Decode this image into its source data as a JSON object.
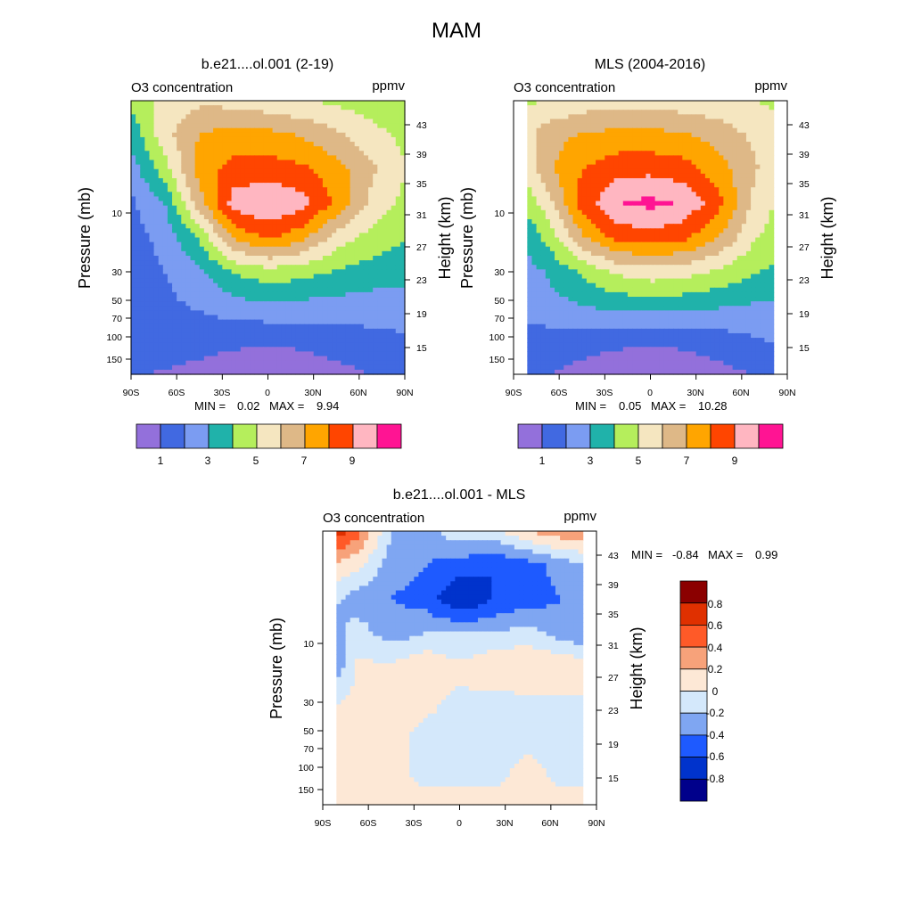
{
  "figure": {
    "title": "MAM"
  },
  "colors": {
    "o3_levels": [
      "#9370db",
      "#4169e1",
      "#7b9cf2",
      "#20b2aa",
      "#b5ee5c",
      "#f5e6c0",
      "#deb887",
      "#ffa500",
      "#ff4500",
      "#ffb6c1",
      "#ff1493"
    ],
    "diff_levels": [
      "#00008b",
      "#0033cc",
      "#1e5aff",
      "#7fa6f2",
      "#d4e8fb",
      "#fde8d6",
      "#f7a27a",
      "#ff5a28",
      "#e03000",
      "#8b0000"
    ]
  },
  "chart_data": [
    {
      "type": "heatmap",
      "title": "b.e21....ol.001 (2-19)",
      "left_label": "O3 concentration",
      "right_label": "ppmv",
      "ylabel": "Pressure (mb)",
      "ylabel_right": "Height (km)",
      "x_ticks": [
        "90S",
        "60S",
        "30S",
        "0",
        "30N",
        "60N",
        "90N"
      ],
      "y_ticks": [
        "10",
        "30",
        "50",
        "70",
        "100",
        "150"
      ],
      "y2_ticks": [
        "43",
        "39",
        "35",
        "31",
        "27",
        "23",
        "19",
        "15"
      ],
      "min_label": "MIN =",
      "min_value": "0.02",
      "max_label": "MAX =",
      "max_value": "9.94",
      "min": 0.02,
      "max": 9.94,
      "levels": [
        1,
        2,
        3,
        4,
        5,
        6,
        7,
        8,
        9,
        10
      ],
      "colorbar_labels": [
        "1",
        "3",
        "5",
        "7",
        "9"
      ],
      "z_grid": [
        [
          4.2,
          5.3,
          5.8,
          5.6,
          5.3,
          5.0,
          4.8,
          4.4,
          4.1
        ],
        [
          3.3,
          5.7,
          7.0,
          7.5,
          7.3,
          6.9,
          6.2,
          5.4,
          4.7
        ],
        [
          2.5,
          4.6,
          7.5,
          8.3,
          8.5,
          8.2,
          7.4,
          6.2,
          5.1
        ],
        [
          1.8,
          3.1,
          6.6,
          9.5,
          10.0,
          9.4,
          7.8,
          5.8,
          4.7
        ],
        [
          1.6,
          2.3,
          4.2,
          7.2,
          8.2,
          7.3,
          5.6,
          4.6,
          4.1
        ],
        [
          1.6,
          2.0,
          2.8,
          4.1,
          4.6,
          4.4,
          3.9,
          3.6,
          3.4
        ],
        [
          1.6,
          1.8,
          2.1,
          2.6,
          2.8,
          2.7,
          2.6,
          2.5,
          2.4
        ],
        [
          1.5,
          1.6,
          1.4,
          1.2,
          1.1,
          1.2,
          1.5,
          1.7,
          1.9
        ],
        [
          1.1,
          0.9,
          0.7,
          0.5,
          0.4,
          0.5,
          0.7,
          1.0,
          1.1
        ]
      ]
    },
    {
      "type": "heatmap",
      "title": "MLS (2004-2016)",
      "left_label": "O3 concentration",
      "right_label": "ppmv",
      "ylabel": "Pressure (mb)",
      "ylabel_right": "Height (km)",
      "x_ticks": [
        "90S",
        "60S",
        "30S",
        "0",
        "30N",
        "60N",
        "90N"
      ],
      "y_ticks": [
        "10",
        "30",
        "50",
        "70",
        "100",
        "150"
      ],
      "y2_ticks": [
        "43",
        "39",
        "35",
        "31",
        "27",
        "23",
        "19",
        "15"
      ],
      "min_label": "MIN =",
      "min_value": "0.05",
      "max_label": "MAX =",
      "max_value": "10.28",
      "min": 0.05,
      "max": 10.28,
      "levels": [
        1,
        2,
        3,
        4,
        5,
        6,
        7,
        8,
        9,
        10
      ],
      "colorbar_labels": [
        "1",
        "3",
        "5",
        "7",
        "9"
      ],
      "z_grid": [
        [
          4.8,
          5.0,
          5.4,
          5.6,
          5.6,
          5.4,
          5.2,
          5.0,
          4.8
        ],
        [
          5.0,
          6.6,
          7.1,
          7.3,
          7.3,
          7.1,
          6.6,
          5.8,
          4.9
        ],
        [
          4.5,
          6.8,
          8.0,
          8.6,
          8.7,
          8.4,
          7.4,
          6.2,
          4.9
        ],
        [
          3.4,
          5.6,
          8.4,
          9.9,
          10.3,
          9.8,
          8.3,
          5.8,
          4.5
        ],
        [
          2.6,
          4.3,
          6.8,
          8.3,
          8.6,
          8.2,
          7.0,
          5.2,
          4.2
        ],
        [
          2.3,
          3.1,
          4.2,
          5.2,
          5.6,
          5.4,
          4.8,
          4.1,
          3.6
        ],
        [
          2.3,
          2.6,
          3.0,
          3.3,
          3.4,
          3.3,
          3.1,
          2.9,
          2.7
        ],
        [
          1.7,
          1.6,
          1.4,
          1.2,
          1.1,
          1.2,
          1.5,
          1.9,
          2.2
        ],
        [
          1.2,
          1.0,
          0.7,
          0.5,
          0.4,
          0.5,
          0.7,
          1.0,
          1.2
        ]
      ]
    },
    {
      "type": "heatmap",
      "title": "b.e21....ol.001 - MLS",
      "left_label": "O3 concentration",
      "right_label": "ppmv",
      "ylabel": "Pressure (mb)",
      "ylabel_right": "Height (km)",
      "x_ticks": [
        "90S",
        "60S",
        "30S",
        "0",
        "30N",
        "60N",
        "90N"
      ],
      "y_ticks": [
        "10",
        "30",
        "50",
        "70",
        "100",
        "150"
      ],
      "y2_ticks": [
        "43",
        "39",
        "35",
        "31",
        "27",
        "23",
        "19",
        "15"
      ],
      "min_label": "MIN =",
      "min_value": "-0.84",
      "max_label": "MAX =",
      "max_value": "0.99",
      "min": -0.84,
      "max": 0.99,
      "levels": [
        -0.8,
        -0.6,
        -0.4,
        -0.2,
        0,
        0.2,
        0.4,
        0.6,
        0.8
      ],
      "colorbar_labels": [
        "0.8",
        "0.6",
        "0.4",
        "0.2",
        "0",
        "-0.2",
        "-0.4",
        "-0.6",
        "-0.8"
      ],
      "z_grid": [
        [
          0.9,
          0.5,
          -0.2,
          -0.3,
          -0.05,
          -0.05,
          0.2,
          0.35,
          0.4
        ],
        [
          0.2,
          0.05,
          -0.3,
          -0.4,
          -0.5,
          -0.6,
          -0.5,
          -0.3,
          -0.2
        ],
        [
          -0.1,
          -0.3,
          -0.4,
          -0.5,
          -0.8,
          -0.6,
          -0.5,
          -0.4,
          -0.3
        ],
        [
          -0.4,
          -0.1,
          -0.3,
          -0.2,
          -0.2,
          -0.2,
          -0.1,
          -0.3,
          -0.4
        ],
        [
          -0.6,
          0.05,
          0.05,
          0.2,
          0.05,
          0.2,
          0.2,
          0.2,
          0.1
        ],
        [
          -0.05,
          0.05,
          0.05,
          0.05,
          -0.05,
          -0.1,
          -0.05,
          -0.05,
          -0.05
        ],
        [
          0.05,
          0.05,
          0.05,
          -0.05,
          -0.1,
          -0.05,
          -0.05,
          -0.05,
          -0.05
        ],
        [
          0.2,
          0.05,
          0.05,
          -0.05,
          -0.05,
          -0.05,
          0.05,
          -0.05,
          -0.05
        ],
        [
          0.05,
          0.05,
          0.05,
          0.05,
          0.05,
          0.05,
          0.05,
          0.05,
          0.05
        ]
      ]
    }
  ]
}
